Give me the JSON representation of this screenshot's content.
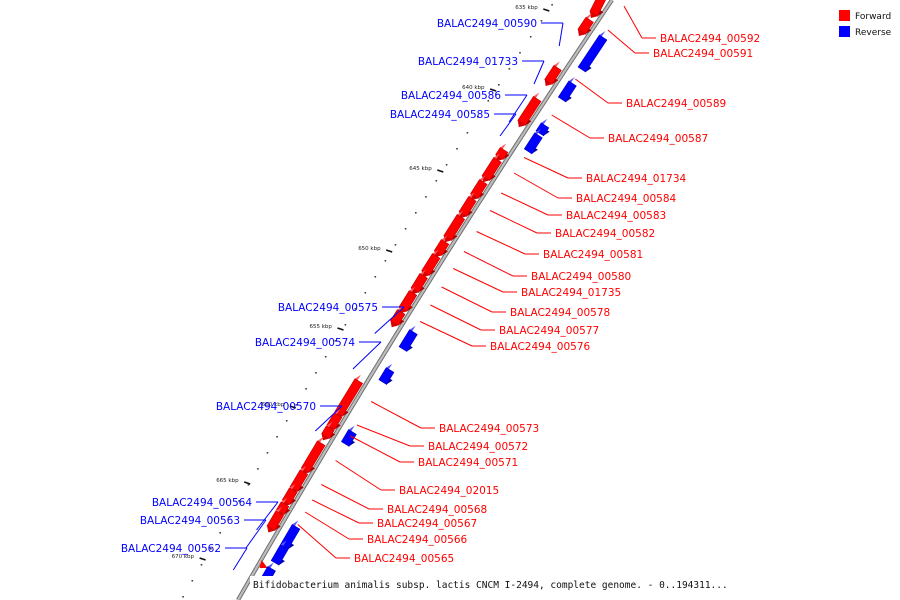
{
  "caption": "Bifidobacterium animalis subsp. lactis CNCM I-2494, complete genome. - 0..194311...",
  "legend": [
    {
      "label": "Forward",
      "color": "#ff0000"
    },
    {
      "label": "Reverse",
      "color": "#0000ff"
    }
  ],
  "colors": {
    "forward": "#ff0000",
    "reverse": "#0000ff",
    "backbone": "#8a8a8a"
  },
  "ticks": [
    "635 kbp",
    "640 kbp",
    "645 kbp",
    "650 kbp",
    "655 kbp",
    "660 kbp",
    "665 kbp",
    "670 kbp"
  ],
  "genes": {
    "forward": [
      "BALAC2494_00592",
      "BALAC2494_00591",
      "BALAC2494_00589",
      "BALAC2494_00587",
      "BALAC2494_01734",
      "BALAC2494_00584",
      "BALAC2494_00583",
      "BALAC2494_00582",
      "BALAC2494_00581",
      "BALAC2494_00580",
      "BALAC2494_01735",
      "BALAC2494_00578",
      "BALAC2494_00577",
      "BALAC2494_00576",
      "BALAC2494_00573",
      "BALAC2494_00572",
      "BALAC2494_00571",
      "BALAC2494_02015",
      "BALAC2494_00568",
      "BALAC2494_00567",
      "BALAC2494_00566",
      "BALAC2494_00565"
    ],
    "reverse": [
      "BALAC2494_00590",
      "BALAC2494_01733",
      "BALAC2494_00586",
      "BALAC2494_00585",
      "BALAC2494_00575",
      "BALAC2494_00574",
      "BALAC2494_00570",
      "BALAC2494_00564",
      "BALAC2494_00563",
      "BALAC2494_00562"
    ]
  }
}
